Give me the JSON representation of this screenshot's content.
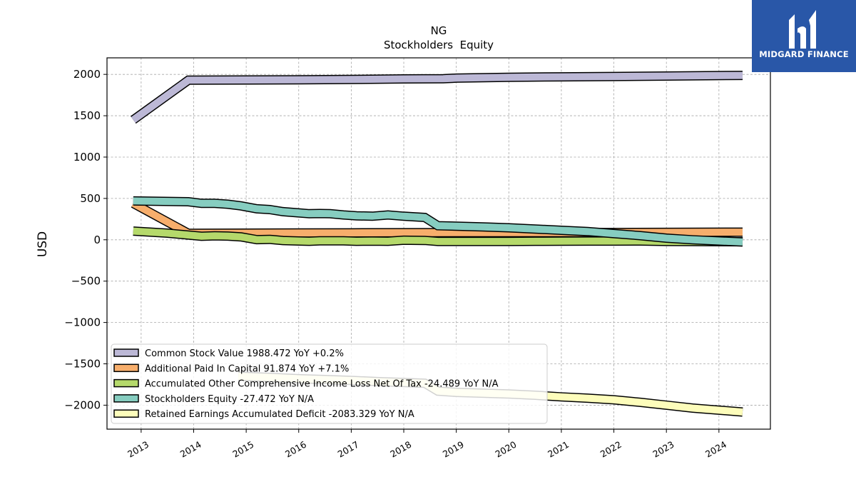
{
  "brand": {
    "name": "MIDGARD FINANCE",
    "bg_color": "#2957a8",
    "icon": "midgard-logo-icon"
  },
  "chart_data": {
    "type": "line",
    "title": "NG",
    "subtitle": "Stockholders  Equity",
    "xlabel": "",
    "ylabel": "USD",
    "xlim": [
      2012.35,
      2024.98
    ],
    "ylim": [
      -2290,
      2200
    ],
    "x_ticks": [
      2013,
      2014,
      2015,
      2016,
      2017,
      2018,
      2019,
      2020,
      2021,
      2022,
      2023,
      2024
    ],
    "y_ticks": [
      2000,
      1500,
      1000,
      500,
      0,
      -500,
      -1000,
      -1500,
      -2000
    ],
    "y_tick_labels": [
      "2000",
      "1500",
      "1000",
      "500",
      "0",
      "−500",
      "−1000",
      "−1500",
      "−2000"
    ],
    "grid": true,
    "legend_position": "lower-left",
    "series": [
      {
        "name": "Common Stock Value  1988.472 YoY +0.2%",
        "color": "#bcb8d6",
        "x": [
          2012.85,
          2013.9,
          2015.0,
          2016.0,
          2017.0,
          2018.0,
          2018.75,
          2019.0,
          2020.0,
          2021.0,
          2022.0,
          2023.0,
          2024.45
        ],
        "y": [
          1450,
          1930,
          1932,
          1935,
          1938,
          1945,
          1948,
          1955,
          1965,
          1970,
          1975,
          1980,
          1988
        ]
      },
      {
        "name": "Additional Paid In Capital  91.874 YoY +7.1%",
        "color": "#f7ae6c",
        "x": [
          2012.85,
          2013.9,
          2015.0,
          2016.0,
          2017.0,
          2018.0,
          2019.0,
          2020.0,
          2021.0,
          2022.0,
          2023.0,
          2024.45
        ],
        "y": [
          440,
          78,
          80,
          82,
          84,
          85,
          86,
          86,
          87,
          88,
          90,
          92
        ]
      },
      {
        "name": "Accumulated Other Comprehensive Income Loss Net Of Tax  -24.489 YoY N/A",
        "color": "#b5d96b",
        "x": [
          2012.85,
          2013.5,
          2014.15,
          2014.4,
          2014.65,
          2014.9,
          2015.2,
          2015.45,
          2015.7,
          2016.0,
          2016.2,
          2016.4,
          2016.6,
          2016.85,
          2017.1,
          2017.4,
          2017.7,
          2018.0,
          2018.4,
          2018.65,
          2019.0,
          2019.5,
          2020.0,
          2020.5,
          2021.0,
          2021.5,
          2022.0,
          2022.5,
          2023.0,
          2023.5,
          2024.45
        ],
        "y": [
          105,
          80,
          42,
          48,
          45,
          35,
          2,
          5,
          -10,
          -15,
          -18,
          -12,
          -12,
          -13,
          -18,
          -16,
          -18,
          -5,
          -8,
          -20,
          -20,
          -20,
          -20,
          -18,
          -17,
          -16,
          -16,
          -15,
          -20,
          -22,
          -24
        ]
      },
      {
        "name": "Stockholders Equity  -27.472 YoY N/A",
        "color": "#86cdc0",
        "x": [
          2012.85,
          2013.9,
          2014.15,
          2014.4,
          2014.65,
          2014.9,
          2015.2,
          2015.45,
          2015.7,
          2016.0,
          2016.2,
          2016.4,
          2016.6,
          2016.85,
          2017.1,
          2017.4,
          2017.7,
          2018.0,
          2018.4,
          2018.65,
          2019.0,
          2019.5,
          2020.0,
          2020.5,
          2021.0,
          2021.5,
          2022.0,
          2022.5,
          2023.0,
          2023.5,
          2024.45
        ],
        "y": [
          470,
          460,
          440,
          440,
          430,
          410,
          375,
          365,
          340,
          325,
          315,
          318,
          315,
          300,
          290,
          285,
          300,
          285,
          270,
          170,
          165,
          155,
          145,
          130,
          115,
          100,
          75,
          50,
          20,
          0,
          -27
        ]
      },
      {
        "name": "Retained Earnings Accumulated Deficit  -2083.329 YoY N/A",
        "color": "#fdfdbb",
        "x": [
          2014.85,
          2015.5,
          2016.0,
          2016.5,
          2017.0,
          2017.5,
          2018.0,
          2018.4,
          2018.65,
          2019.0,
          2019.5,
          2020.0,
          2020.5,
          2021.0,
          2021.5,
          2022.0,
          2022.5,
          2023.0,
          2023.5,
          2024.45
        ],
        "y": [
          -1650,
          -1665,
          -1680,
          -1690,
          -1700,
          -1715,
          -1725,
          -1735,
          -1830,
          -1845,
          -1855,
          -1865,
          -1880,
          -1900,
          -1915,
          -1935,
          -1965,
          -2000,
          -2035,
          -2083
        ]
      }
    ]
  }
}
